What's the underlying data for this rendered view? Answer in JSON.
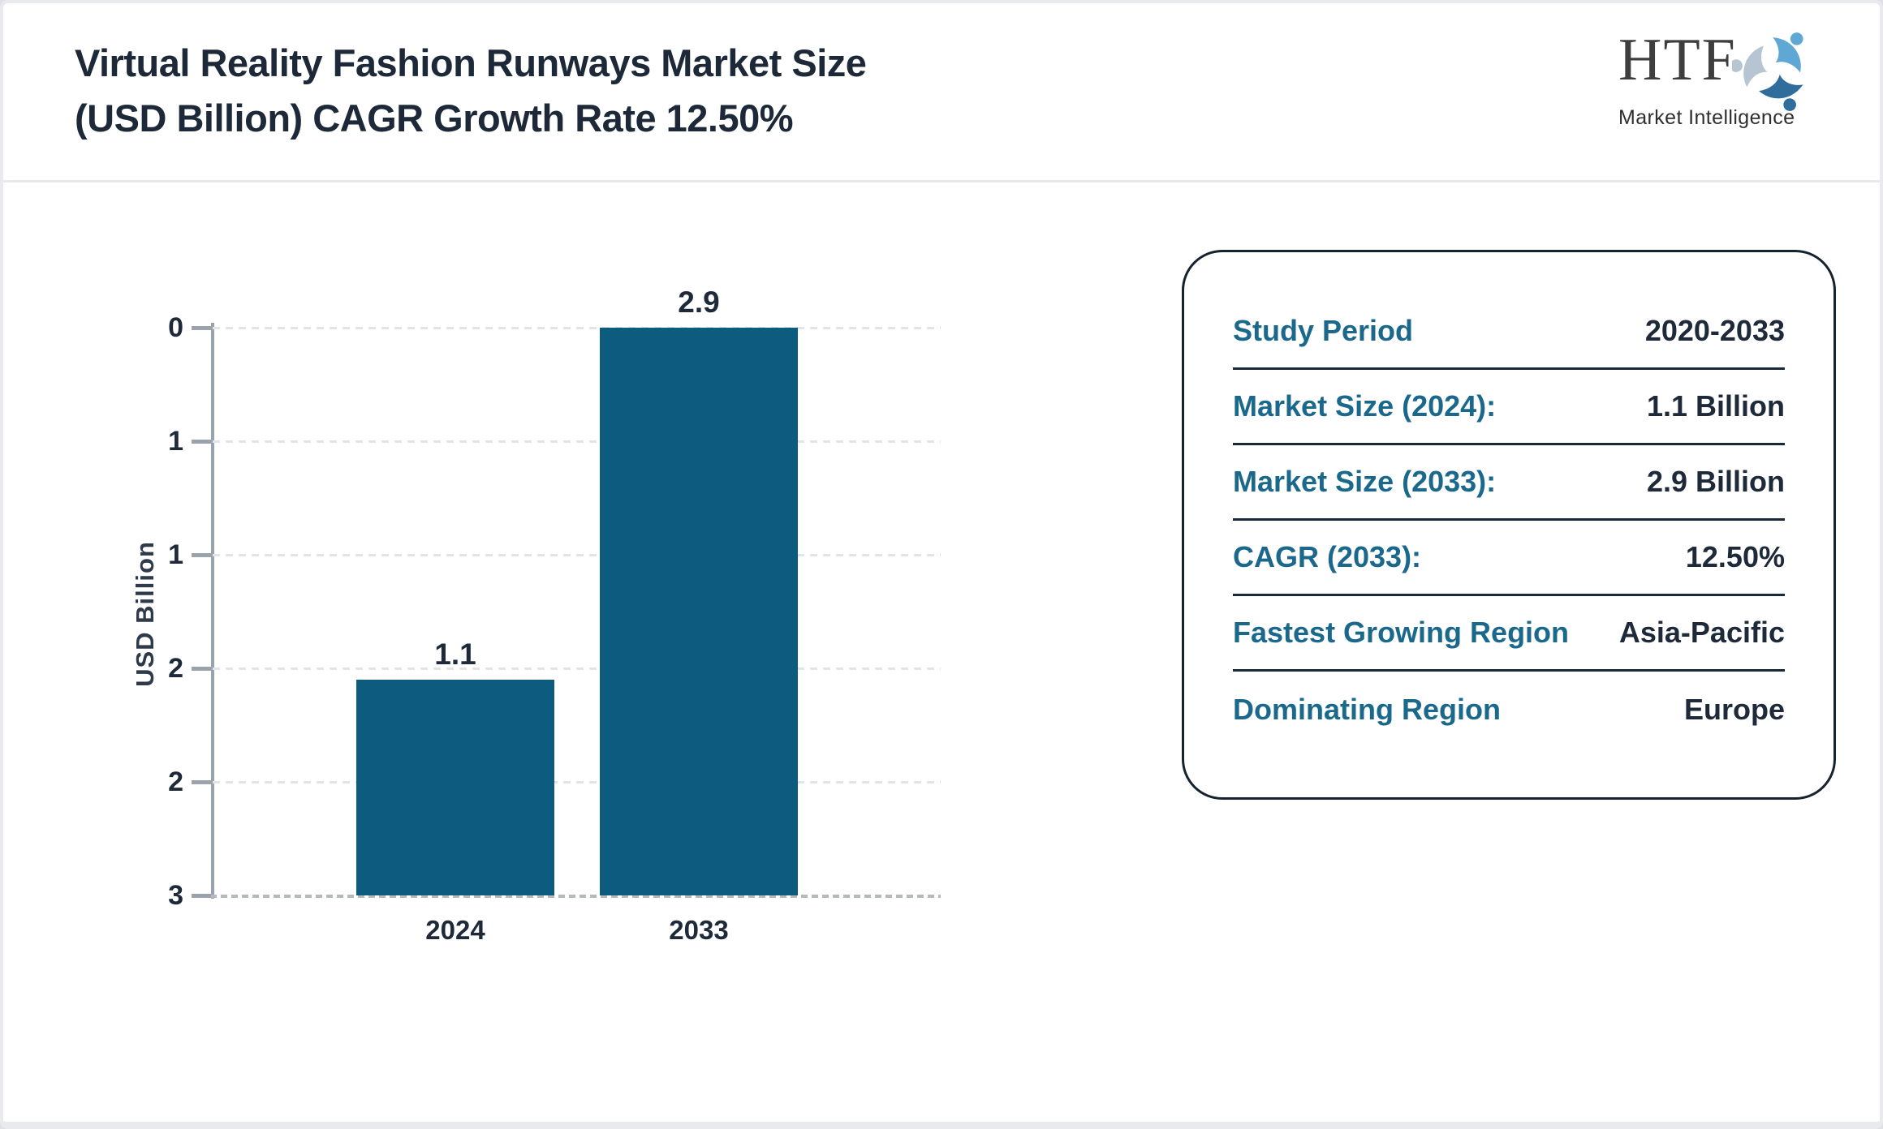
{
  "header": {
    "title_line1": "Virtual Reality Fashion Runways Market Size",
    "title_line2": "(USD Billion) CAGR Growth Rate 12.50%",
    "logo_text": "HTF",
    "logo_subtitle": "Market Intelligence"
  },
  "chart_data": {
    "type": "bar",
    "title": "Virtual Reality Fashion Runways Market Size (USD Billion) CAGR Growth Rate 12.50%",
    "categories": [
      "2024",
      "2033"
    ],
    "values": [
      1.1,
      2.9
    ],
    "bar_labels": [
      "1.1",
      "2.9"
    ],
    "xlabel": "",
    "ylabel": "USD Billion",
    "ylim": [
      0,
      2.9
    ],
    "ytick_values": [
      0,
      0.58,
      1.16,
      1.74,
      2.32,
      2.9
    ],
    "ytick_labels": [
      "0",
      "1",
      "1",
      "2",
      "2",
      "3"
    ],
    "grid": "horizontal-dashed",
    "legend": "none",
    "bar_color": "#0e5b80"
  },
  "info_panel": {
    "rows": [
      {
        "label": "Study Period",
        "value": "2020-2033"
      },
      {
        "label": "Market Size (2024):",
        "value": "1.1 Billion"
      },
      {
        "label": "Market Size (2033):",
        "value": "2.9 Billion"
      },
      {
        "label": "CAGR (2033):",
        "value": "12.50%"
      },
      {
        "label": "Fastest Growing Region",
        "value": "Asia-Pacific"
      },
      {
        "label": "Dominating Region",
        "value": "Europe"
      }
    ]
  },
  "colors": {
    "bar": "#0e5b80",
    "title_text": "#1d2938",
    "panel_label": "#1a698c",
    "panel_value": "#1e2a3a",
    "panel_border": "#16222e",
    "axis": "#9aa2ac",
    "gridline": "#e3e4e7",
    "logo_figures": [
      "#5fa8d6",
      "#2e6d9c",
      "#b6c5d1"
    ]
  }
}
